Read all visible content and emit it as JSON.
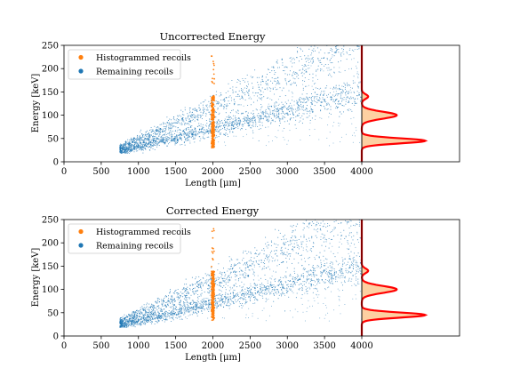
{
  "chart_data": [
    {
      "type": "scatter",
      "title": "Uncorrected Energy",
      "xlabel": "Length [μm]",
      "ylabel": "Energy [keV]",
      "xlim": [
        0,
        4000
      ],
      "ylim": [
        0,
        250
      ],
      "xticks": [
        "0",
        "500",
        "1000",
        "1500",
        "2000",
        "2500",
        "3000",
        "3500",
        "4000"
      ],
      "yticks": [
        "0",
        "50",
        "100",
        "150",
        "200",
        "250"
      ],
      "legend_position": "top-left",
      "series": [
        {
          "name": "Histogrammed recoils",
          "color": "#ff7f0e",
          "x_range": [
            1980,
            2020
          ],
          "y_range": [
            25,
            235
          ],
          "dense_y_range": [
            30,
            140
          ]
        },
        {
          "name": "Remaining recoils",
          "color": "#1f77b4",
          "x_range": [
            750,
            4000
          ],
          "bands": [
            {
              "x": [
                750,
                4000
              ],
              "y_at_xmin": 22,
              "y_at_xmax": 150
            },
            {
              "x": [
                750,
                4000
              ],
              "y_at_xmin": 30,
              "y_at_xmax": 260
            }
          ]
        }
      ],
      "side_histogram": {
        "orientation": "horizontal",
        "fill_color": "#fdd0a2",
        "fit_color": "#ff0000",
        "peaks_keV": [
          45,
          100,
          140
        ]
      }
    },
    {
      "type": "scatter",
      "title": "Corrected Energy",
      "xlabel": "Length [μm]",
      "ylabel": "Energy [keV]",
      "xlim": [
        0,
        4000
      ],
      "ylim": [
        0,
        250
      ],
      "xticks": [
        "0",
        "500",
        "1000",
        "1500",
        "2000",
        "2500",
        "3000",
        "3500",
        "4000"
      ],
      "yticks": [
        "0",
        "50",
        "100",
        "150",
        "200",
        "250"
      ],
      "legend_position": "top-left",
      "series": [
        {
          "name": "Histogrammed recoils",
          "color": "#ff7f0e",
          "x_range": [
            1980,
            2020
          ],
          "y_range": [
            25,
            235
          ],
          "dense_y_range": [
            30,
            140
          ]
        },
        {
          "name": "Remaining recoils",
          "color": "#1f77b4",
          "x_range": [
            750,
            4000
          ],
          "bands": [
            {
              "x": [
                750,
                4000
              ],
              "y_at_xmin": 22,
              "y_at_xmax": 150
            },
            {
              "x": [
                750,
                4000
              ],
              "y_at_xmin": 30,
              "y_at_xmax": 260
            }
          ]
        }
      ],
      "side_histogram": {
        "orientation": "horizontal",
        "fill_color": "#fdd0a2",
        "fit_color": "#ff0000",
        "peaks_keV": [
          45,
          100,
          140
        ]
      }
    }
  ]
}
